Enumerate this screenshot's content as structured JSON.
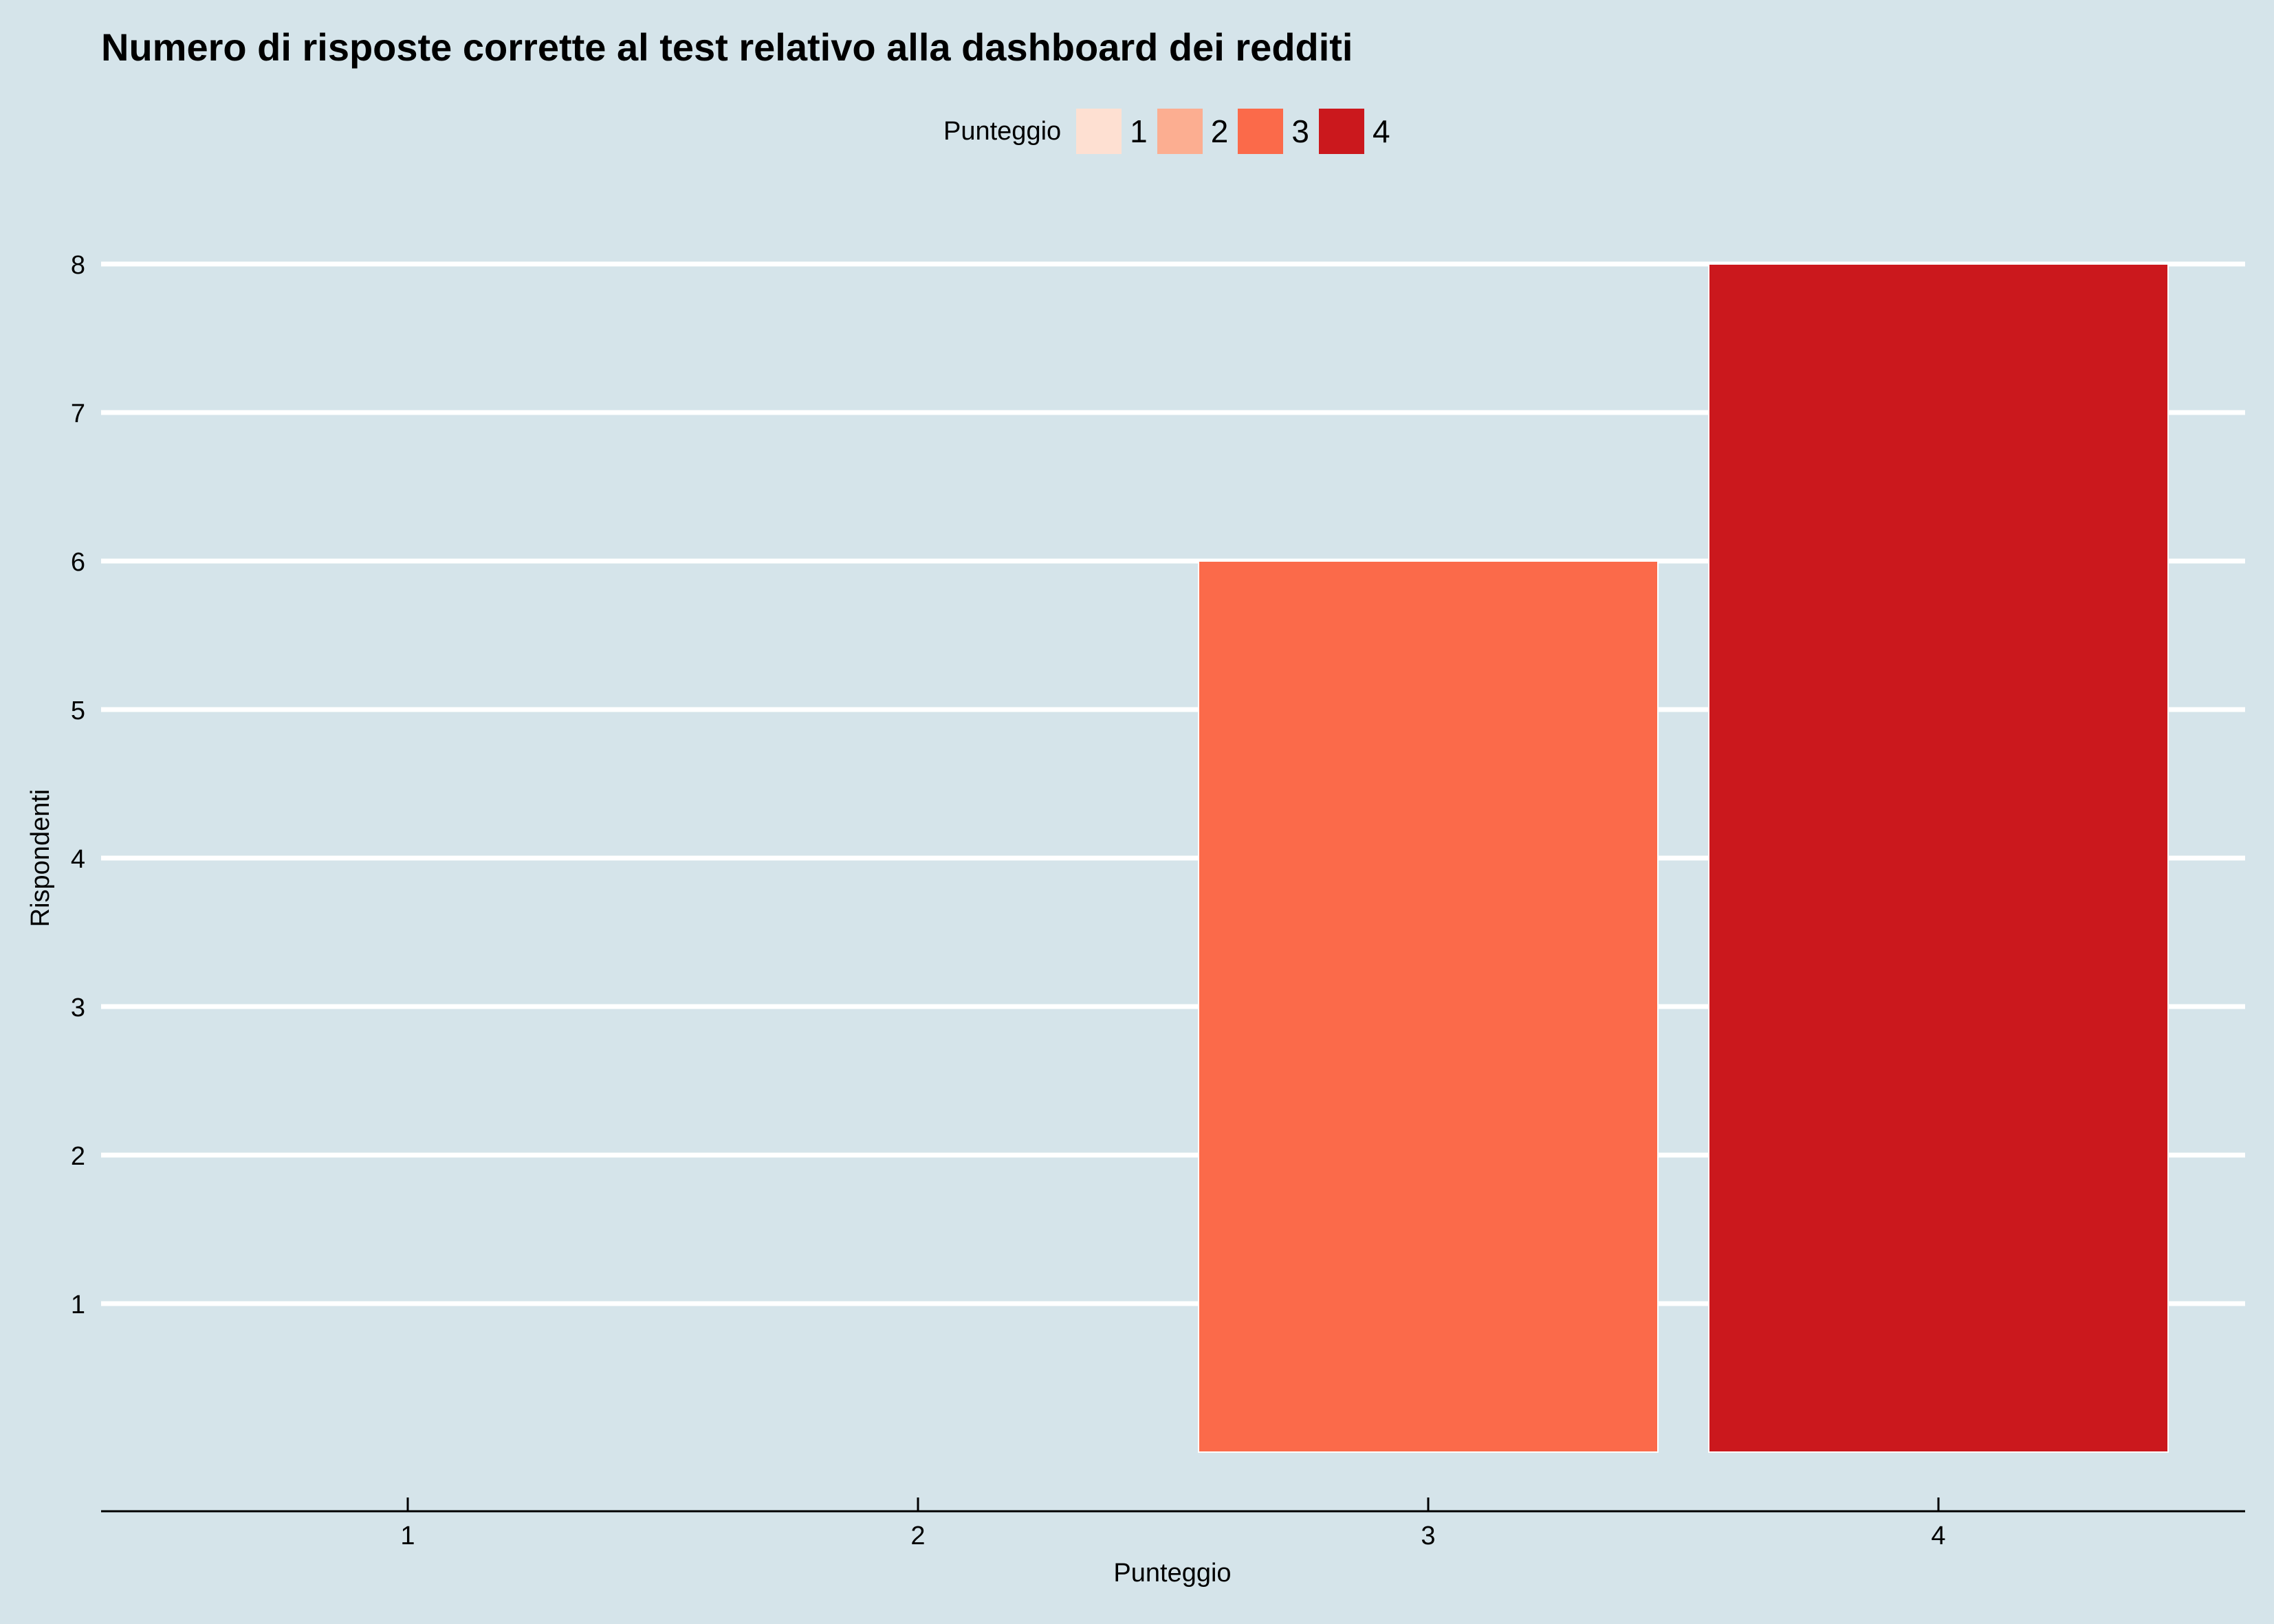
{
  "chart_data": {
    "type": "bar",
    "title": "Numero di risposte corrette al test relativo alla dashboard dei redditi",
    "xlabel": "Punteggio",
    "ylabel": "Rispondenti",
    "categories": [
      "1",
      "2",
      "3",
      "4"
    ],
    "values": [
      0,
      0,
      6,
      8
    ],
    "y_ticks": [
      "1",
      "2",
      "3",
      "4",
      "5",
      "6",
      "7",
      "8"
    ],
    "ylim": [
      0,
      8
    ],
    "grid": "horizontal",
    "legend": {
      "title": "Punteggio",
      "placement": "top",
      "items": [
        {
          "label": "1",
          "color": "#fee0d2"
        },
        {
          "label": "2",
          "color": "#fcae91"
        },
        {
          "label": "3",
          "color": "#fb6a4a"
        },
        {
          "label": "4",
          "color": "#cb181d"
        }
      ]
    },
    "colors": {
      "background": "#d5e4ea",
      "grid": "#ffffff",
      "axis": "#000000"
    }
  }
}
